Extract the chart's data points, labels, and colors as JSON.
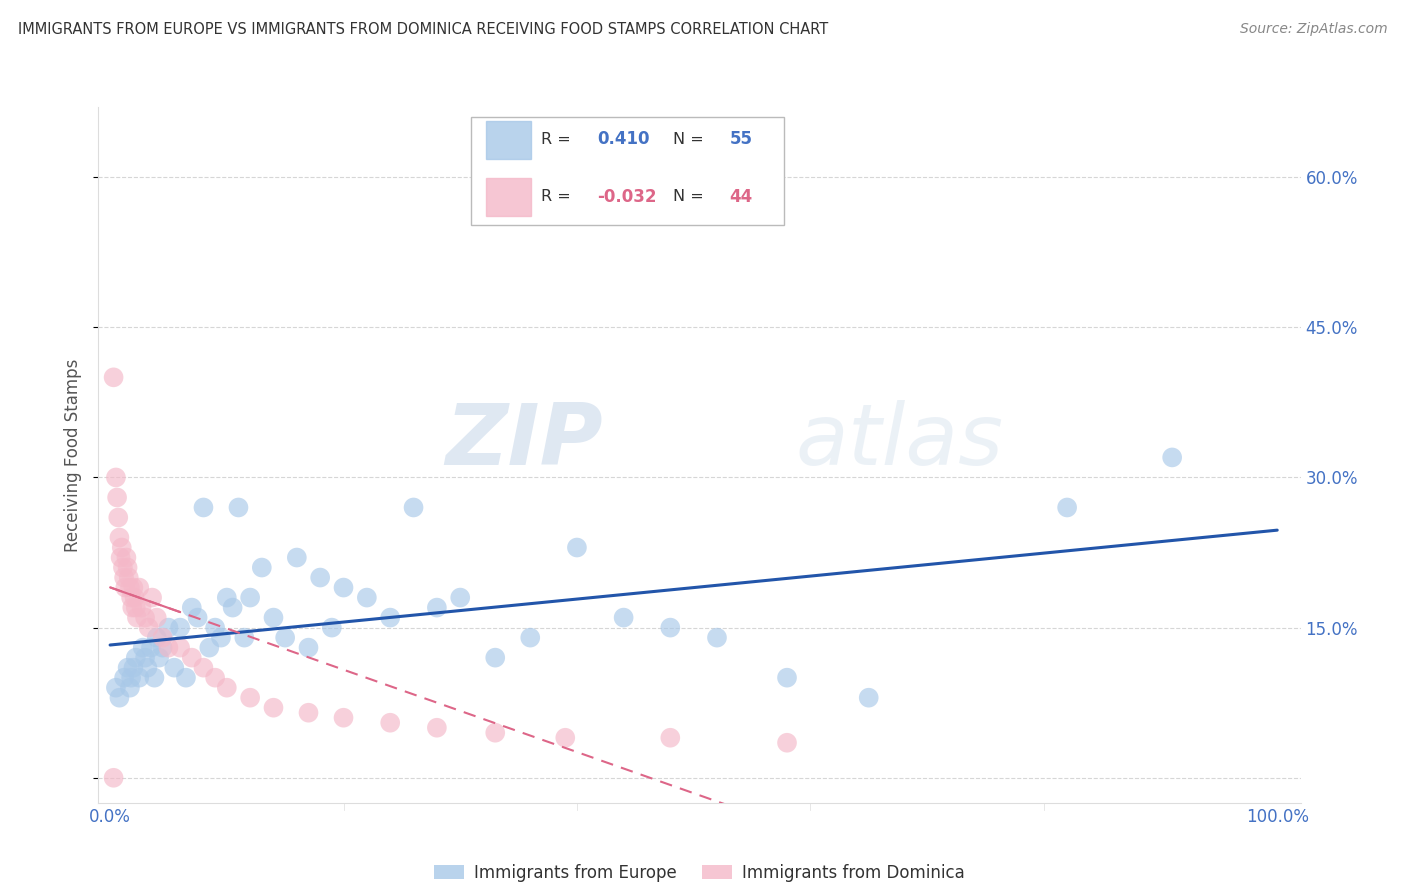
{
  "title": "IMMIGRANTS FROM EUROPE VS IMMIGRANTS FROM DOMINICA RECEIVING FOOD STAMPS CORRELATION CHART",
  "source": "Source: ZipAtlas.com",
  "ylabel": "Receiving Food Stamps",
  "x_ticks": [
    0.0,
    0.2,
    0.4,
    0.6,
    0.8,
    1.0
  ],
  "x_tick_labels": [
    "0.0%",
    "",
    "",
    "",
    "",
    "100.0%"
  ],
  "y_ticks": [
    0.0,
    0.15,
    0.3,
    0.45,
    0.6
  ],
  "y_tick_labels_right": [
    "",
    "15.0%",
    "30.0%",
    "45.0%",
    "60.0%"
  ],
  "xlim": [
    -0.01,
    1.02
  ],
  "ylim": [
    -0.025,
    0.67
  ],
  "background_color": "#ffffff",
  "grid_color": "#cccccc",
  "title_color": "#222222",
  "axis_tick_color": "#4472c4",
  "europe_color": "#a8c8e8",
  "dominica_color": "#f4b8c8",
  "europe_line_color": "#2255aa",
  "dominica_line_color": "#dd6688",
  "europe_R": 0.41,
  "europe_N": 55,
  "dominica_R": -0.032,
  "dominica_N": 44,
  "legend_europe_label": "Immigrants from Europe",
  "legend_dominica_label": "Immigrants from Dominica",
  "watermark_zip": "ZIP",
  "watermark_atlas": "atlas",
  "europe_scatter_x": [
    0.005,
    0.008,
    0.012,
    0.015,
    0.017,
    0.018,
    0.02,
    0.022,
    0.025,
    0.028,
    0.03,
    0.032,
    0.035,
    0.038,
    0.04,
    0.042,
    0.045,
    0.05,
    0.055,
    0.06,
    0.065,
    0.07,
    0.075,
    0.08,
    0.085,
    0.09,
    0.095,
    0.1,
    0.105,
    0.11,
    0.115,
    0.12,
    0.13,
    0.14,
    0.15,
    0.16,
    0.17,
    0.18,
    0.19,
    0.2,
    0.22,
    0.24,
    0.26,
    0.28,
    0.3,
    0.33,
    0.36,
    0.4,
    0.44,
    0.48,
    0.52,
    0.58,
    0.65,
    0.82,
    0.91
  ],
  "europe_scatter_y": [
    0.09,
    0.08,
    0.1,
    0.11,
    0.09,
    0.1,
    0.11,
    0.12,
    0.1,
    0.13,
    0.12,
    0.11,
    0.13,
    0.1,
    0.14,
    0.12,
    0.13,
    0.15,
    0.11,
    0.15,
    0.1,
    0.17,
    0.16,
    0.27,
    0.13,
    0.15,
    0.14,
    0.18,
    0.17,
    0.27,
    0.14,
    0.18,
    0.21,
    0.16,
    0.14,
    0.22,
    0.13,
    0.2,
    0.15,
    0.19,
    0.18,
    0.16,
    0.27,
    0.17,
    0.18,
    0.12,
    0.14,
    0.23,
    0.16,
    0.15,
    0.14,
    0.1,
    0.08,
    0.27,
    0.32
  ],
  "dominica_scatter_x": [
    0.003,
    0.005,
    0.006,
    0.007,
    0.008,
    0.009,
    0.01,
    0.011,
    0.012,
    0.013,
    0.014,
    0.015,
    0.016,
    0.017,
    0.018,
    0.019,
    0.02,
    0.021,
    0.022,
    0.023,
    0.025,
    0.027,
    0.03,
    0.033,
    0.036,
    0.04,
    0.045,
    0.05,
    0.06,
    0.07,
    0.08,
    0.09,
    0.1,
    0.12,
    0.14,
    0.17,
    0.2,
    0.24,
    0.28,
    0.33,
    0.39,
    0.48,
    0.58,
    0.003
  ],
  "dominica_scatter_y": [
    0.4,
    0.3,
    0.28,
    0.26,
    0.24,
    0.22,
    0.23,
    0.21,
    0.2,
    0.19,
    0.22,
    0.21,
    0.2,
    0.19,
    0.18,
    0.17,
    0.19,
    0.18,
    0.17,
    0.16,
    0.19,
    0.17,
    0.16,
    0.15,
    0.18,
    0.16,
    0.14,
    0.13,
    0.13,
    0.12,
    0.11,
    0.1,
    0.09,
    0.08,
    0.07,
    0.065,
    0.06,
    0.055,
    0.05,
    0.045,
    0.04,
    0.04,
    0.035,
    0.0
  ]
}
